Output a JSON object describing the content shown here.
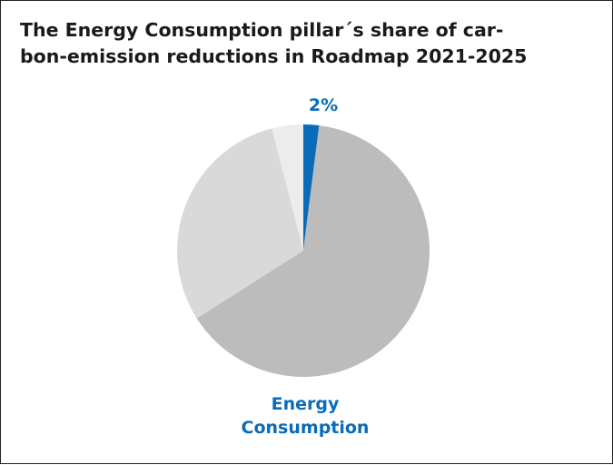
{
  "title_lines": [
    "The Energy Consumption pillar´s share of car-",
    "bon-emission reductions in Roadmap 2021-2025"
  ],
  "chart_data": {
    "type": "pie",
    "title": "The Energy Consumption pillar´s share of carbon-emission reductions in Roadmap 2021-2025",
    "slices": [
      {
        "name": "Energy Consumption",
        "value": 2,
        "color": "#0a6cb8",
        "label": "2%"
      },
      {
        "name": "",
        "value": 64,
        "color": "#bcbcbc"
      },
      {
        "name": "",
        "value": 30,
        "color": "#d9d9d9"
      },
      {
        "name": "",
        "value": 4,
        "color": "#ececec"
      }
    ],
    "start": "12 o'clock",
    "direction": "clockwise",
    "category_label_lines": [
      "Energy",
      "Consumption"
    ],
    "accent_color": "#0a6cb8",
    "legend": "none"
  }
}
